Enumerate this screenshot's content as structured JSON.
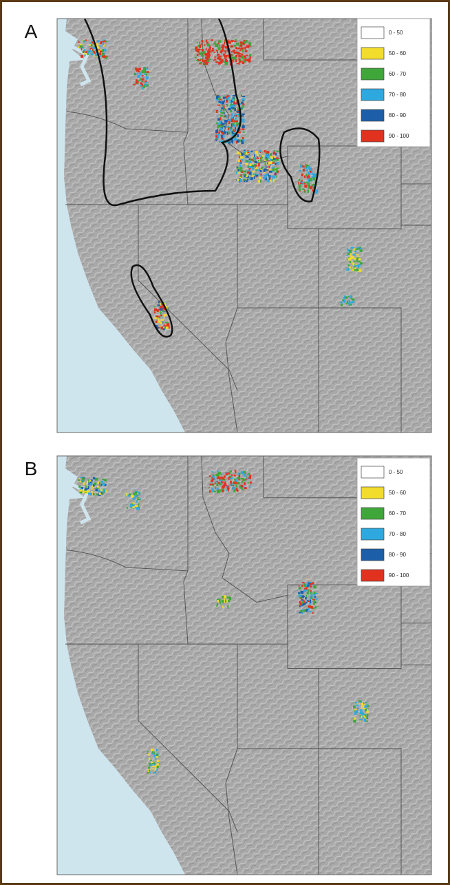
{
  "panels": [
    {
      "label": "A",
      "legend": [
        {
          "label": "0 - 50",
          "color": "#ffffff"
        },
        {
          "label": "50 - 60",
          "color": "#f2dc2c"
        },
        {
          "label": "60 - 70",
          "color": "#3fa63a"
        },
        {
          "label": "70 - 80",
          "color": "#2ea9df"
        },
        {
          "label": "80 - 90",
          "color": "#1c5fa8"
        },
        {
          "label": "90 - 100",
          "color": "#e0321f"
        }
      ]
    },
    {
      "label": "B",
      "legend": [
        {
          "label": "0 - 50",
          "color": "#ffffff"
        },
        {
          "label": "50 - 60",
          "color": "#f2dc2c"
        },
        {
          "label": "60 - 70",
          "color": "#3fa63a"
        },
        {
          "label": "70 - 80",
          "color": "#2ea9df"
        },
        {
          "label": "80 - 90",
          "color": "#1c5fa8"
        },
        {
          "label": "90 - 100",
          "color": "#e0321f"
        }
      ]
    }
  ]
}
